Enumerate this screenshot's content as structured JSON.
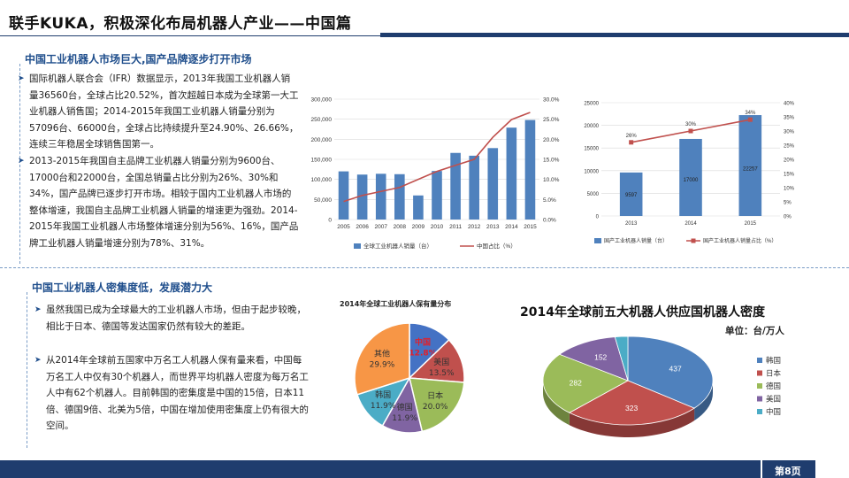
{
  "title": "联手KUKA，积极深化布局机器人产业——中国篇",
  "section1": {
    "heading": "中国工业机器人市场巨大,国产品牌逐步打开市场",
    "para1": "国际机器人联合会（IFR）数据显示，2013年我国工业机器人销量36560台，全球占比20.52%，首次超越日本成为全球第一大工业机器人销售国；2014-2015年我国工业机器人销量分别为57096台、66000台，全球占比持续提升至24.90%、26.66%，连续三年稳居全球销售国第一。",
    "para2": "2013-2015年我国自主品牌工业机器人销量分别为9600台、17000台和22000台，全国总销量占比分别为26%、30%和34%，国产品牌已逐步打开市场。相较于国内工业机器人市场的整体增速，我国自主品牌工业机器人销量的增速更为强劲。2014-2015年我国工业机器人市场整体增速分别为56%、16%，国产品牌工业机器人销量增速分别为78%、31%。"
  },
  "section2": {
    "heading": "中国工业机器人密集度低，发展潜力大",
    "para1": "虽然我国已成为全球最大的工业机器人市场，但由于起步较晚，相比于日本、德国等发达国家仍然有较大的差距。",
    "para2": "从2014年全球前五国家中万名工人机器人保有量来看，中国每万名工人中仅有30个机器人，而世界平均机器人密度为每万名工人中有62个机器人。目前韩国的密集度是中国的15倍，日本11倍、德国9倍、北美为5倍，中国在增加使用密集度上仍有很大的空间。"
  },
  "page": "第8页",
  "pie_title": "2014年全球工业机器人保有量分布",
  "density_title": "2014年全球前五大机器人供应国机器人密度",
  "density_unit": "单位：台/万人",
  "chart_data": [
    {
      "type": "bar",
      "categories": [
        "2005",
        "2006",
        "2007",
        "2008",
        "2009",
        "2010",
        "2011",
        "2012",
        "2013",
        "2014",
        "2015"
      ],
      "series": [
        {
          "name": "全球工业机器人销量（台）",
          "type": "bar",
          "axis": "left",
          "values": [
            120000,
            112000,
            114000,
            113000,
            60000,
            121000,
            166000,
            159000,
            178000,
            229000,
            248000
          ],
          "color": "#4f81bd"
        },
        {
          "name": "中国占比（%）",
          "type": "line",
          "axis": "right",
          "values": [
            4.5,
            6.0,
            7.0,
            8.0,
            10.0,
            12.0,
            13.5,
            15.0,
            20.5,
            24.9,
            26.7
          ],
          "color": "#c0504d"
        }
      ],
      "ylim": [
        0,
        300000
      ],
      "y2lim": [
        0,
        30
      ],
      "yticks": [
        "0",
        "50,000",
        "100,000",
        "150,000",
        "200,000",
        "250,000",
        "300,000"
      ],
      "y2ticks": [
        "0.0%",
        "5.0%",
        "10.0%",
        "15.0%",
        "20.0%",
        "25.0%",
        "30.0%"
      ],
      "legend": "bottom"
    },
    {
      "type": "bar",
      "categories": [
        "2013",
        "2014",
        "2015"
      ],
      "series": [
        {
          "name": "国产工业机器人销量（台）",
          "type": "bar",
          "axis": "left",
          "values": [
            9597,
            17000,
            22257
          ],
          "color": "#4f81bd"
        },
        {
          "name": "国产工业机器人销量占比（%）",
          "type": "line",
          "axis": "right",
          "values": [
            26,
            30,
            34
          ],
          "color": "#c0504d"
        }
      ],
      "bar_labels": [
        "9597",
        "17000",
        "22257"
      ],
      "line_labels": [
        "26%",
        "30%",
        "34%"
      ],
      "ylim": [
        0,
        25000
      ],
      "y2lim": [
        0,
        40
      ],
      "yticks": [
        "0",
        "5000",
        "10000",
        "15000",
        "20000",
        "25000"
      ],
      "y2ticks": [
        "0%",
        "5%",
        "10%",
        "15%",
        "20%",
        "25%",
        "30%",
        "35%",
        "40%"
      ],
      "legend": "bottom"
    },
    {
      "type": "pie",
      "title": "2014年全球工业机器人保有量分布",
      "slices": [
        {
          "name": "中国",
          "value": "12.8%",
          "color": "#4472c4"
        },
        {
          "name": "美国",
          "value": "13.5%",
          "color": "#c0504d"
        },
        {
          "name": "日本",
          "value": "20.0%",
          "color": "#9bbb59"
        },
        {
          "name": "德国",
          "value": "11.9%",
          "color": "#8064a2"
        },
        {
          "name": "韩国",
          "value": "11.9%",
          "color": "#4bacc6"
        },
        {
          "name": "其他",
          "value": "29.9%",
          "color": "#f79646"
        }
      ]
    },
    {
      "type": "pie",
      "title": "2014年全球前五大机器人供应国机器人密度",
      "slices": [
        {
          "name": "韩国",
          "value": 437,
          "color": "#4f81bd"
        },
        {
          "name": "日本",
          "value": 323,
          "color": "#c0504d"
        },
        {
          "name": "德国",
          "value": 282,
          "color": "#9bbb59"
        },
        {
          "name": "美国",
          "value": 152,
          "color": "#8064a2"
        },
        {
          "name": "中国",
          "value": 30,
          "color": "#4bacc6"
        }
      ],
      "legend": "right"
    }
  ]
}
